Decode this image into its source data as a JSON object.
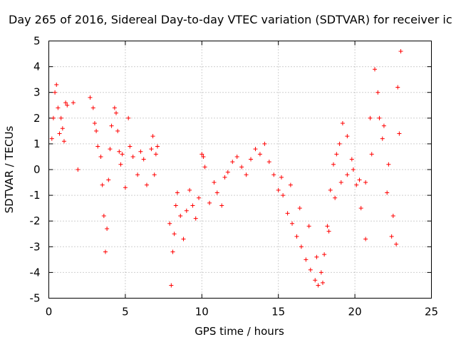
{
  "chart_data": {
    "type": "scatter",
    "title": "Day 265 of 2016, Sidereal Day-to-day VTEC variation (SDTVAR) for receiver ic",
    "xlabel": "GPS time / hours",
    "ylabel": "SDTVAR / TECUs",
    "xlim": [
      0,
      25
    ],
    "ylim": [
      -5,
      5
    ],
    "xticks": [
      0,
      5,
      10,
      15,
      20,
      25
    ],
    "yticks": [
      -5,
      -4,
      -3,
      -2,
      -1,
      0,
      1,
      2,
      3,
      4,
      5
    ],
    "grid": true,
    "marker": "plus",
    "series": [
      {
        "color": "#ff0000",
        "x": [
          0.2,
          0.3,
          0.4,
          0.5,
          0.6,
          0.7,
          0.8,
          0.9,
          1.0,
          1.1,
          1.2,
          1.6,
          1.9,
          2.7,
          2.9,
          3.0,
          3.1,
          3.2,
          3.4,
          3.5,
          3.6,
          3.7,
          3.8,
          3.9,
          4.0,
          4.1,
          4.3,
          4.4,
          4.5,
          4.6,
          4.7,
          4.8,
          5.0,
          5.2,
          5.3,
          5.5,
          5.8,
          6.0,
          6.2,
          6.4,
          6.7,
          6.8,
          6.9,
          7.0,
          7.1,
          7.9,
          8.0,
          8.1,
          8.2,
          8.3,
          8.4,
          8.6,
          8.8,
          9.0,
          9.2,
          9.4,
          9.6,
          9.8,
          10.0,
          10.1,
          10.2,
          10.5,
          10.8,
          11.0,
          11.3,
          11.5,
          11.7,
          12.0,
          12.3,
          12.6,
          12.9,
          13.2,
          13.5,
          13.8,
          14.1,
          14.4,
          14.7,
          15.0,
          15.3,
          15.6,
          15.9,
          16.2,
          16.5,
          16.8,
          17.1,
          17.4,
          17.6,
          17.8,
          18.0,
          18.2,
          18.4,
          18.6,
          18.8,
          19.0,
          19.2,
          19.5,
          19.8,
          20.1,
          20.4,
          20.7,
          21.0,
          21.3,
          21.6,
          21.9,
          22.2,
          22.5,
          22.8,
          23.0,
          15.2,
          15.8,
          16.4,
          17.0,
          17.5,
          17.9,
          18.3,
          18.7,
          19.1,
          19.5,
          19.9,
          20.3,
          20.7,
          21.1,
          21.5,
          21.8,
          22.1,
          22.4,
          22.7,
          22.9
        ],
        "y": [
          1.2,
          2.0,
          3.0,
          3.3,
          2.4,
          1.4,
          2.0,
          1.6,
          1.1,
          2.6,
          2.5,
          2.6,
          0.0,
          2.8,
          2.4,
          1.8,
          1.5,
          0.9,
          0.5,
          -0.6,
          -1.8,
          -3.2,
          -2.3,
          -0.4,
          0.8,
          1.7,
          2.4,
          2.2,
          1.5,
          0.7,
          0.2,
          0.6,
          -0.7,
          2.0,
          0.9,
          0.5,
          -0.2,
          0.7,
          0.4,
          -0.6,
          0.8,
          1.3,
          -0.2,
          0.6,
          0.9,
          -2.1,
          -4.5,
          -3.2,
          -2.5,
          -1.4,
          -0.9,
          -1.8,
          -2.7,
          -1.6,
          -0.8,
          -1.4,
          -1.9,
          -1.1,
          0.6,
          0.5,
          0.1,
          -1.3,
          -0.5,
          -0.9,
          -1.4,
          -0.3,
          -0.1,
          0.3,
          0.5,
          0.1,
          -0.2,
          0.4,
          0.8,
          0.6,
          1.0,
          0.3,
          -0.2,
          -0.8,
          -1.0,
          -1.7,
          -2.1,
          -2.6,
          -3.0,
          -3.5,
          -3.9,
          -4.3,
          -4.5,
          -4.0,
          -3.3,
          -2.2,
          -0.8,
          0.2,
          0.6,
          1.0,
          1.8,
          1.3,
          0.4,
          -0.6,
          -1.5,
          -0.5,
          2.0,
          3.9,
          2.0,
          1.7,
          0.2,
          -1.8,
          3.2,
          4.6,
          -0.3,
          -0.6,
          -1.5,
          -2.2,
          -3.4,
          -4.4,
          -2.4,
          -1.1,
          -0.5,
          -0.2,
          0.0,
          -0.4,
          -2.7,
          0.6,
          3.0,
          1.2,
          -0.9,
          -2.6,
          -2.9,
          1.4
        ]
      }
    ]
  }
}
